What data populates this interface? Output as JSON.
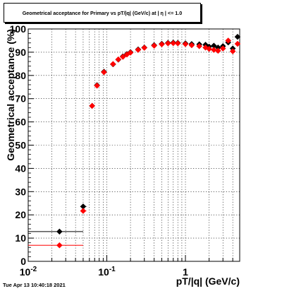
{
  "title": "Geometrical acceptance for Primary vs pT/|q| (GeV/c) at | η | <= 1.0",
  "timestamp": "Tue Apr 13 10:40:18 2021",
  "colors": {
    "series_black": "#000000",
    "series_red": "#ff0000",
    "grid": "#000000"
  },
  "chart_data": {
    "type": "scatter",
    "title": "Geometrical acceptance for Primary vs pT/|q| (GeV/c) at | η | <= 1.0",
    "xlabel": "pT/|q| (GeV/c)",
    "ylabel": "Geometrical acceptance (%)",
    "xscale": "log",
    "xlim": [
      0.01,
      4.9
    ],
    "ylim": [
      0,
      100
    ],
    "xticks": [
      {
        "value": 0.01,
        "label": "10",
        "exp": "-2"
      },
      {
        "value": 0.1,
        "label": "10",
        "exp": "-1"
      },
      {
        "value": 1,
        "label": "1",
        "exp": ""
      }
    ],
    "yticks": [
      0,
      10,
      20,
      30,
      40,
      50,
      60,
      70,
      80,
      90,
      100
    ],
    "grid": true,
    "series": [
      {
        "color": "#000000",
        "marker": "diamond",
        "points": [
          {
            "x": 0.025,
            "y": 12.8,
            "xlo": 0.01,
            "xhi": 0.05
          },
          {
            "x": 0.05,
            "y": 23.6,
            "xlo": 0.046,
            "xhi": 0.055
          },
          {
            "x": 0.065,
            "y": 66.9
          },
          {
            "x": 0.075,
            "y": 75.8
          },
          {
            "x": 0.092,
            "y": 81.6
          },
          {
            "x": 0.12,
            "y": 84.8
          },
          {
            "x": 0.14,
            "y": 86.8
          },
          {
            "x": 0.16,
            "y": 88.2
          },
          {
            "x": 0.18,
            "y": 89.2
          },
          {
            "x": 0.2,
            "y": 90.0
          },
          {
            "x": 0.25,
            "y": 91.2
          },
          {
            "x": 0.3,
            "y": 92.0
          },
          {
            "x": 0.4,
            "y": 93.0
          },
          {
            "x": 0.5,
            "y": 93.6
          },
          {
            "x": 0.6,
            "y": 94.0
          },
          {
            "x": 0.7,
            "y": 94.1
          },
          {
            "x": 0.8,
            "y": 94.0
          },
          {
            "x": 1.0,
            "y": 93.8
          },
          {
            "x": 1.2,
            "y": 93.5
          },
          {
            "x": 1.5,
            "y": 93.4
          },
          {
            "x": 1.8,
            "y": 93.2
          },
          {
            "x": 2.0,
            "y": 92.4
          },
          {
            "x": 2.3,
            "y": 92.8
          },
          {
            "x": 2.6,
            "y": 92.0
          },
          {
            "x": 3.0,
            "y": 92.6
          },
          {
            "x": 3.5,
            "y": 94.2
          },
          {
            "x": 4.0,
            "y": 91.6
          },
          {
            "x": 4.6,
            "y": 96.6
          }
        ]
      },
      {
        "color": "#ff0000",
        "marker": "diamond",
        "points": [
          {
            "x": 0.025,
            "y": 6.9,
            "xlo": 0.01,
            "xhi": 0.05
          },
          {
            "x": 0.05,
            "y": 21.7,
            "xlo": 0.046,
            "xhi": 0.055
          },
          {
            "x": 0.065,
            "y": 66.9
          },
          {
            "x": 0.075,
            "y": 75.6
          },
          {
            "x": 0.092,
            "y": 81.4
          },
          {
            "x": 0.12,
            "y": 84.9
          },
          {
            "x": 0.14,
            "y": 86.9
          },
          {
            "x": 0.16,
            "y": 88.0
          },
          {
            "x": 0.18,
            "y": 89.0
          },
          {
            "x": 0.2,
            "y": 89.8
          },
          {
            "x": 0.25,
            "y": 91.0
          },
          {
            "x": 0.3,
            "y": 91.9
          },
          {
            "x": 0.4,
            "y": 92.8
          },
          {
            "x": 0.5,
            "y": 93.4
          },
          {
            "x": 0.6,
            "y": 93.8
          },
          {
            "x": 0.7,
            "y": 93.9
          },
          {
            "x": 0.8,
            "y": 93.8
          },
          {
            "x": 1.0,
            "y": 93.5
          },
          {
            "x": 1.2,
            "y": 93.0
          },
          {
            "x": 1.5,
            "y": 92.6
          },
          {
            "x": 1.8,
            "y": 92.0
          },
          {
            "x": 2.0,
            "y": 91.4
          },
          {
            "x": 2.3,
            "y": 91.0
          },
          {
            "x": 2.6,
            "y": 90.6
          },
          {
            "x": 3.0,
            "y": 91.6
          },
          {
            "x": 3.5,
            "y": 95.0
          },
          {
            "x": 4.0,
            "y": 90.4
          },
          {
            "x": 4.6,
            "y": 93.6
          }
        ]
      }
    ]
  }
}
